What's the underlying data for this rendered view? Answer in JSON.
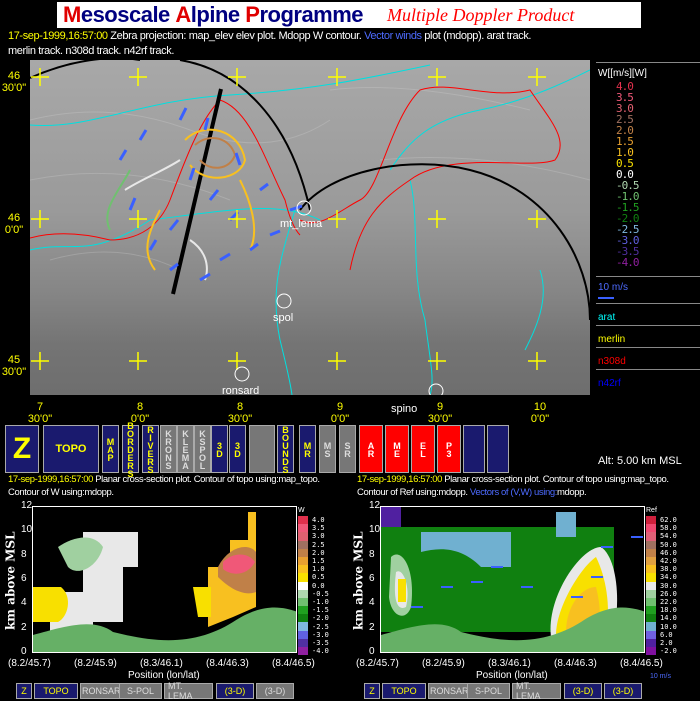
{
  "banner": {
    "m": "M",
    "esoscale": "esoscale ",
    "a": "A",
    "lpine": "lpine ",
    "p": "P",
    "rogramme": "rogramme",
    "subtitle": "Multiple Doppler Product"
  },
  "header": {
    "timestamp": "17-sep-1999,16:57:00",
    "text1": " Zebra projection: map_elev elev  plot.  Mdopp W contour. ",
    "vector": "Vector winds",
    "text2": " plot (mdopp). arat track.",
    "line2": "merlin track.   n308d track.   n42rf track."
  },
  "map": {
    "lat_labels": [
      [
        "46",
        "30'0\""
      ],
      [
        "46",
        "0'0\""
      ],
      [
        "45",
        "30'0\""
      ]
    ],
    "lon_labels": [
      [
        "7",
        "30'0\""
      ],
      [
        "8",
        "0'0\""
      ],
      [
        "8",
        "30'0\""
      ],
      [
        "9",
        "0'0\""
      ],
      [
        "9",
        "30'0\""
      ],
      [
        "10",
        "0'0\""
      ]
    ],
    "stations": [
      "mt_lema",
      "spol",
      "ronsard",
      "spino"
    ]
  },
  "legend": {
    "title": "W[[m/s][W]",
    "w_levels": [
      [
        "4.0",
        "#e0304c"
      ],
      [
        "3.5",
        "#f05878"
      ],
      [
        "3.0",
        "#e06070"
      ],
      [
        "2.5",
        "#a07060"
      ],
      [
        "2.0",
        "#c08048"
      ],
      [
        "1.5",
        "#e8a030"
      ],
      [
        "1.0",
        "#f8c020"
      ],
      [
        "0.5",
        "#f8e000"
      ],
      [
        "0.0",
        "#ffffff"
      ],
      [
        "-0.5",
        "#b0d8b0"
      ],
      [
        "-1.0",
        "#70c070"
      ],
      [
        "-1.5",
        "#20a020"
      ],
      [
        "-2.0",
        "#108010"
      ],
      [
        "-2.5",
        "#80b8e0"
      ],
      [
        "-3.0",
        "#6060e0"
      ],
      [
        "-3.5",
        "#5030a0"
      ],
      [
        "-4.0",
        "#9020a0"
      ]
    ],
    "vector_scale": "10 m/s",
    "tracks": [
      [
        "arat",
        "#00ffff"
      ],
      [
        "merlin",
        "#ffff00"
      ],
      [
        "n308d",
        "#ff0000"
      ],
      [
        "n42rf",
        "#0000ff"
      ]
    ]
  },
  "toolbar": {
    "buttons": [
      "Z",
      "TOPO",
      "MAP",
      "BORDERS",
      "RIVERS",
      "KRONS",
      "KLEMA",
      "KSPOL",
      "3D",
      "3D",
      "",
      "BOUNDS",
      "MR",
      "MS",
      "SR",
      "AR",
      "ME",
      "EL",
      "P3",
      "",
      ""
    ],
    "alt": "Alt: 5.00 km MSL"
  },
  "left_plot": {
    "timestamp": "17-sep-1999,16:57:00",
    "line1": " Planar cross-section plot.  Contour of topo using:map_topo.",
    "line2": "Contour of W using:mdopp.",
    "ylabel": "km above MSL",
    "xlabel": "Position (lon/lat)",
    "cbar_title": "W",
    "yticks": [
      "12",
      "10",
      "8",
      "6",
      "4",
      "2",
      "0"
    ],
    "xticks": [
      "(8.2/45.7)",
      "(8.2/45.9)",
      "(8.3/46.1)",
      "(8.4/46.3)",
      "(8.4/46.5)"
    ],
    "buttons": [
      "Z",
      "TOPO",
      "RONSARD",
      "S-POL",
      "MT. LEMA",
      "(3-D)",
      "(3-D)"
    ]
  },
  "right_plot": {
    "timestamp": "17-sep-1999,16:57:00",
    "line1": " Planar cross-section plot.  Contour of topo using:map_topo.",
    "line2a": "Contour of Ref using:mdopp. ",
    "line2b": "Vectors of (V,W) using:",
    "line2c": "mdopp.",
    "ylabel": "km above MSL",
    "xlabel": "Position (lon/lat)",
    "cbar_title": "Ref",
    "vector_scale": "10 m/s",
    "ref_levels": [
      [
        "62.0",
        "#d0203c"
      ],
      [
        "58.0",
        "#f04870"
      ],
      [
        "54.0",
        "#e06078"
      ],
      [
        "50.0",
        "#a07060"
      ],
      [
        "46.0",
        "#c08048"
      ],
      [
        "42.0",
        "#e0a040"
      ],
      [
        "38.0",
        "#f8c020"
      ],
      [
        "34.0",
        "#f8e000"
      ],
      [
        "30.0",
        "#e8e8e8"
      ],
      [
        "26.0",
        "#a0d0a0"
      ],
      [
        "22.0",
        "#70c070"
      ],
      [
        "18.0",
        "#20a020"
      ],
      [
        "14.0",
        "#108010"
      ],
      [
        "10.0",
        "#70b0d0"
      ],
      [
        "6.0",
        "#7060e0"
      ],
      [
        "2.0",
        "#5020a0"
      ],
      [
        "-2.0",
        "#8010a0"
      ]
    ],
    "buttons": [
      "Z",
      "TOPO",
      "RONSARD",
      "S-POL",
      "MT. LEMA",
      "(3-D)",
      "(3-D)"
    ]
  }
}
